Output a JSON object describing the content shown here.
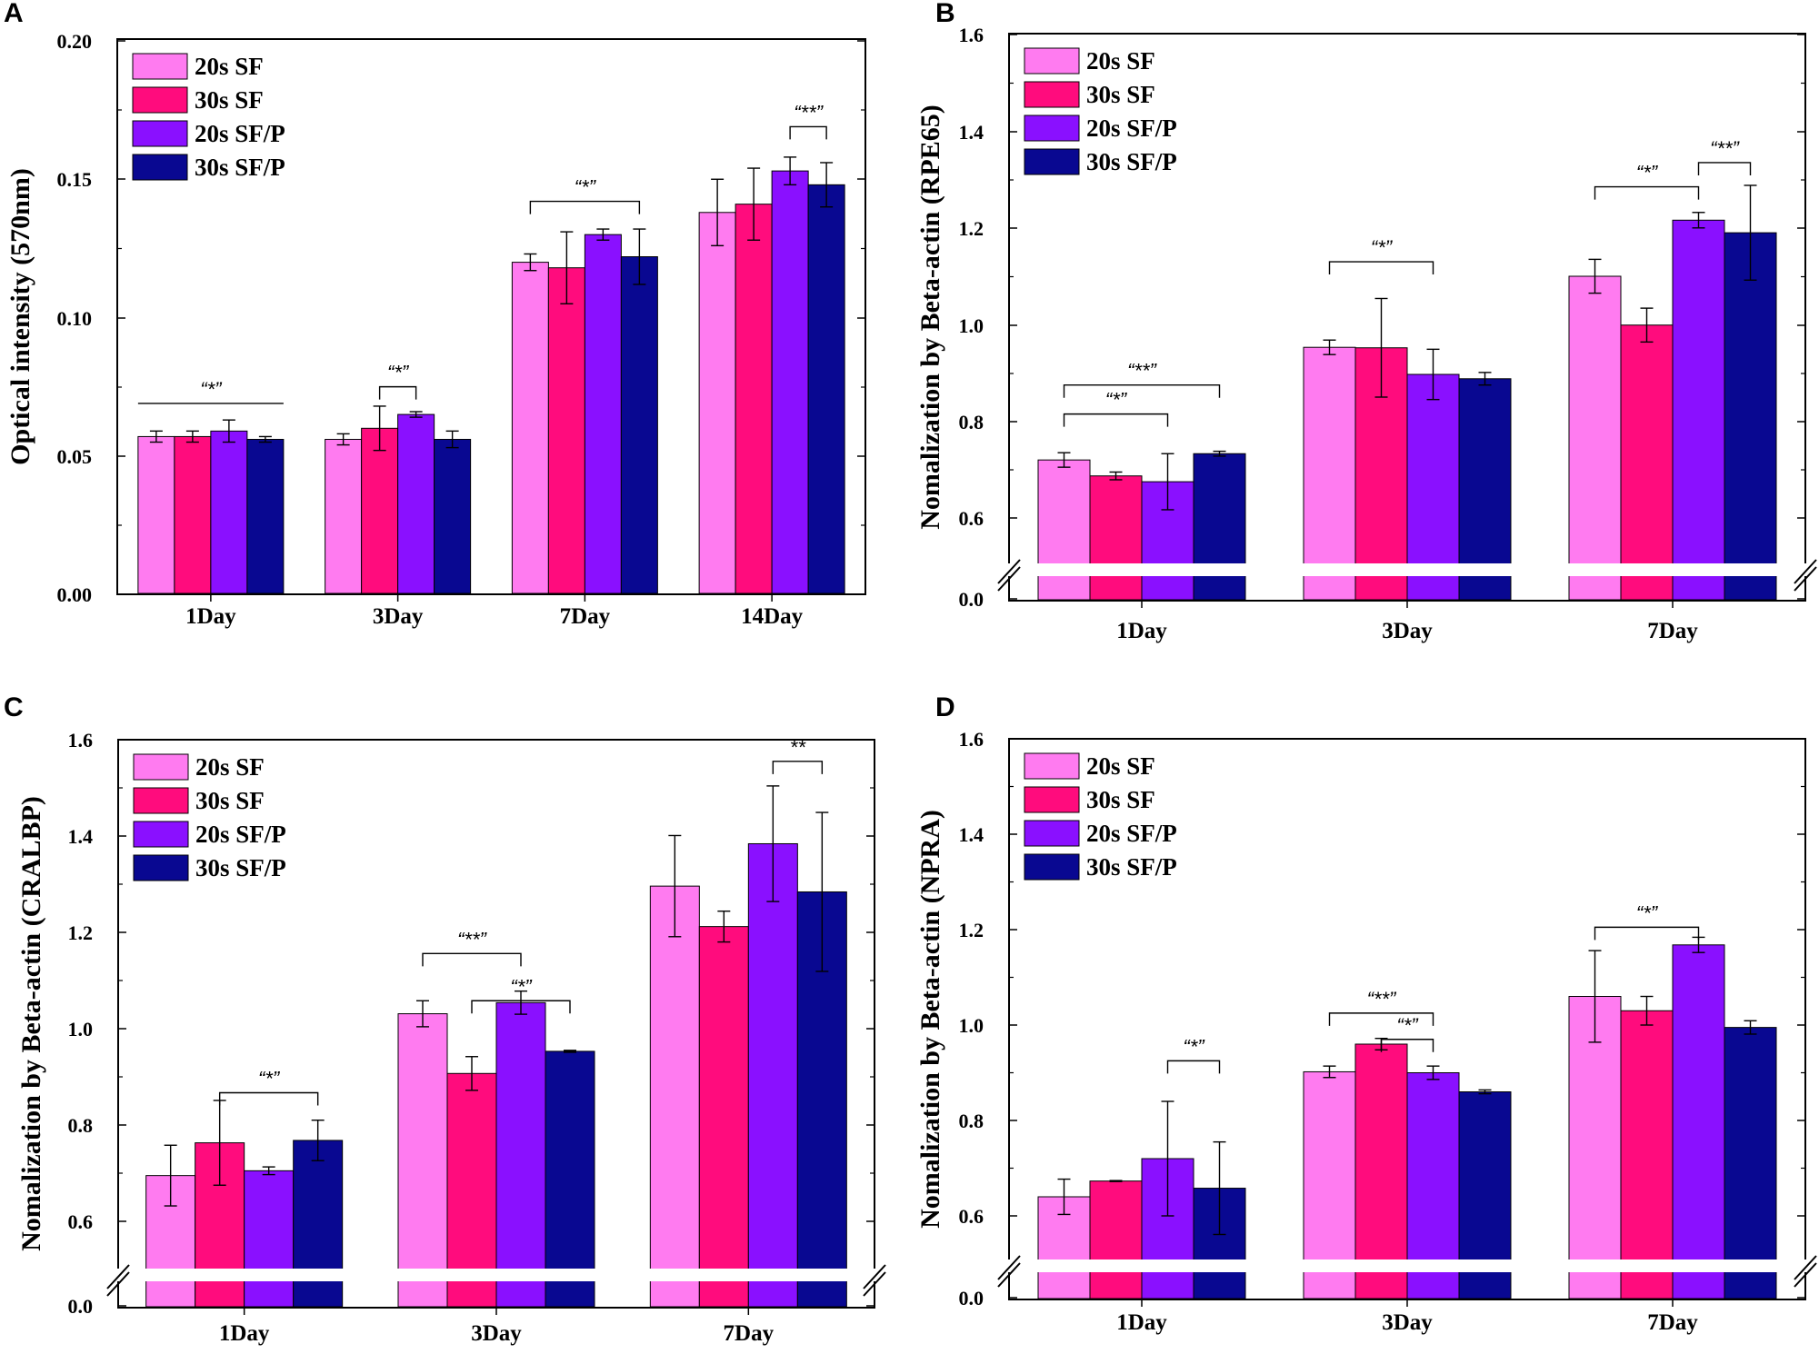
{
  "colors": {
    "20s SF": "#FF7BF0",
    "30s SF": "#FF0C7D",
    "20s SF/P": "#8A10FF",
    "30s SF/P": "#090891"
  },
  "chart_data": [
    {
      "panel": "A",
      "type": "bar",
      "title": "",
      "ylabel": "Optical intensity (570nm)",
      "xlabel": "",
      "ylim": [
        0,
        0.2
      ],
      "yticks": [
        "0.00",
        "0.05",
        "0.10",
        "0.15",
        "0.20"
      ],
      "yaxis_break": false,
      "categories": [
        "1Day",
        "3Day",
        "7Day",
        "14Day"
      ],
      "series": [
        {
          "name": "20s SF",
          "values": [
            0.057,
            0.056,
            0.12,
            0.138
          ],
          "errors": [
            0.002,
            0.002,
            0.003,
            0.012
          ]
        },
        {
          "name": "30s SF",
          "values": [
            0.057,
            0.06,
            0.118,
            0.141
          ],
          "errors": [
            0.002,
            0.008,
            0.013,
            0.013
          ]
        },
        {
          "name": "20s SF/P",
          "values": [
            0.059,
            0.065,
            0.13,
            0.153
          ],
          "errors": [
            0.004,
            0.001,
            0.002,
            0.005
          ]
        },
        {
          "name": "30s SF/P",
          "values": [
            0.056,
            0.056,
            0.122,
            0.148
          ],
          "errors": [
            0.001,
            0.003,
            0.01,
            0.008
          ]
        }
      ],
      "legend": {
        "position": "top-left",
        "entries": [
          "20s SF",
          "30s SF",
          "20s SF/P",
          "30s SF/P"
        ]
      },
      "annotations": [
        {
          "text": "“*”",
          "category": 0,
          "from": 0,
          "to": 3,
          "y": 0.069,
          "style": "flat"
        },
        {
          "text": "“*”",
          "category": 1,
          "from": 1,
          "to": 2,
          "y": 0.075,
          "style": "bracket"
        },
        {
          "text": "“*”",
          "category": 2,
          "from": 0,
          "to": 3,
          "y": 0.142,
          "style": "bracket"
        },
        {
          "text": "“**”",
          "category": 3,
          "from": 2,
          "to": 3,
          "y": 0.169,
          "style": "bracket"
        }
      ]
    },
    {
      "panel": "B",
      "type": "bar",
      "title": "",
      "ylabel": "Nomalization by Beta-actin (RPE65)",
      "xlabel": "",
      "ylim": [
        0,
        1.6
      ],
      "yticks": [
        "0.0",
        "0.6",
        "0.8",
        "1.0",
        "1.2",
        "1.4",
        "1.6"
      ],
      "yaxis_break": true,
      "categories": [
        "1Day",
        "3Day",
        "7Day"
      ],
      "series": [
        {
          "name": "20s SF",
          "values": [
            0.72,
            0.953,
            1.1
          ],
          "errors": [
            0.015,
            0.015,
            0.035
          ]
        },
        {
          "name": "30s SF",
          "values": [
            0.687,
            0.952,
            0.999
          ],
          "errors": [
            0.008,
            0.102,
            0.035
          ]
        },
        {
          "name": "20s SF/P",
          "values": [
            0.675,
            0.897,
            1.216
          ],
          "errors": [
            0.058,
            0.052,
            0.016
          ]
        },
        {
          "name": "30s SF/P",
          "values": [
            0.733,
            0.888,
            1.19
          ],
          "errors": [
            0.005,
            0.013,
            0.098
          ]
        }
      ],
      "legend": {
        "position": "top-left",
        "entries": [
          "20s SF",
          "30s SF",
          "20s SF/P",
          "30s SF/P"
        ]
      },
      "annotations": [
        {
          "text": "“**”",
          "category": 0,
          "from": 0,
          "to": 3,
          "y": 0.875,
          "style": "bracket"
        },
        {
          "text": "“*”",
          "category": 0,
          "from": 0,
          "to": 2,
          "y": 0.815,
          "style": "bracket"
        },
        {
          "text": "“*”",
          "category": 1,
          "from": 0,
          "to": 2,
          "y": 1.13,
          "style": "bracket"
        },
        {
          "text": "“*”",
          "category": 2,
          "from": 0,
          "to": 2,
          "y": 1.285,
          "style": "bracket"
        },
        {
          "text": "“**”",
          "category": 2,
          "from": 2,
          "to": 3,
          "y": 1.335,
          "style": "bracket"
        }
      ]
    },
    {
      "panel": "C",
      "type": "bar",
      "title": "",
      "ylabel": "Nomalization by Beta-actin (CRALBP)",
      "xlabel": "",
      "ylim": [
        0,
        1.6
      ],
      "yticks": [
        "0.0",
        "0.6",
        "0.8",
        "1.0",
        "1.2",
        "1.4",
        "1.6"
      ],
      "yaxis_break": true,
      "categories": [
        "1Day",
        "3Day",
        "7Day"
      ],
      "series": [
        {
          "name": "20s SF",
          "values": [
            0.695,
            1.031,
            1.296
          ],
          "errors": [
            0.063,
            0.027,
            0.105
          ]
        },
        {
          "name": "30s SF",
          "values": [
            0.763,
            0.907,
            1.212
          ],
          "errors": [
            0.088,
            0.035,
            0.032
          ]
        },
        {
          "name": "20s SF/P",
          "values": [
            0.705,
            1.054,
            1.384
          ],
          "errors": [
            0.008,
            0.024,
            0.12
          ]
        },
        {
          "name": "30s SF/P",
          "values": [
            0.768,
            0.953,
            1.284
          ],
          "errors": [
            0.042,
            0.002,
            0.165
          ]
        }
      ],
      "legend": {
        "position": "top-left",
        "entries": [
          "20s SF",
          "30s SF",
          "20s SF/P",
          "30s SF/P"
        ]
      },
      "annotations": [
        {
          "text": "“*”",
          "category": 0,
          "from": 1,
          "to": 3,
          "y": 0.867,
          "style": "bracket"
        },
        {
          "text": "“**”",
          "category": 1,
          "from": 0,
          "to": 2,
          "y": 1.156,
          "style": "bracket"
        },
        {
          "text": "“*”",
          "category": 1,
          "from": 1,
          "to": 3,
          "y": 1.058,
          "style": "bracket"
        },
        {
          "text": "**",
          "category": 2,
          "from": 2,
          "to": 3,
          "y": 1.555,
          "style": "bracket"
        }
      ]
    },
    {
      "panel": "D",
      "type": "bar",
      "title": "",
      "ylabel": "Nomalization by Beta-actin (NPRA)",
      "xlabel": "",
      "ylim": [
        0,
        1.6
      ],
      "yticks": [
        "0.0",
        "0.6",
        "0.8",
        "1.0",
        "1.2",
        "1.4",
        "1.6"
      ],
      "yaxis_break": true,
      "categories": [
        "1Day",
        "3Day",
        "7Day"
      ],
      "series": [
        {
          "name": "20s SF",
          "values": [
            0.64,
            0.902,
            1.06
          ],
          "errors": [
            0.037,
            0.012,
            0.096
          ]
        },
        {
          "name": "30s SF",
          "values": [
            0.673,
            0.96,
            1.03
          ],
          "errors": [
            0.001,
            0.012,
            0.03
          ]
        },
        {
          "name": "20s SF/P",
          "values": [
            0.72,
            0.9,
            1.168
          ],
          "errors": [
            0.12,
            0.014,
            0.016
          ]
        },
        {
          "name": "30s SF/P",
          "values": [
            0.658,
            0.86,
            0.995
          ],
          "errors": [
            0.097,
            0.004,
            0.014
          ]
        }
      ],
      "legend": {
        "position": "top-left",
        "entries": [
          "20s SF",
          "30s SF",
          "20s SF/P",
          "30s SF/P"
        ]
      },
      "annotations": [
        {
          "text": "“*”",
          "category": 0,
          "from": 2,
          "to": 3,
          "y": 0.925,
          "style": "bracket"
        },
        {
          "text": "“**”",
          "category": 1,
          "from": 0,
          "to": 2,
          "y": 1.025,
          "style": "bracket"
        },
        {
          "text": "“*”",
          "category": 1,
          "from": 1,
          "to": 2,
          "y": 0.97,
          "style": "bracket"
        },
        {
          "text": "“*”",
          "category": 2,
          "from": 0,
          "to": 2,
          "y": 1.205,
          "style": "bracket"
        }
      ]
    }
  ]
}
